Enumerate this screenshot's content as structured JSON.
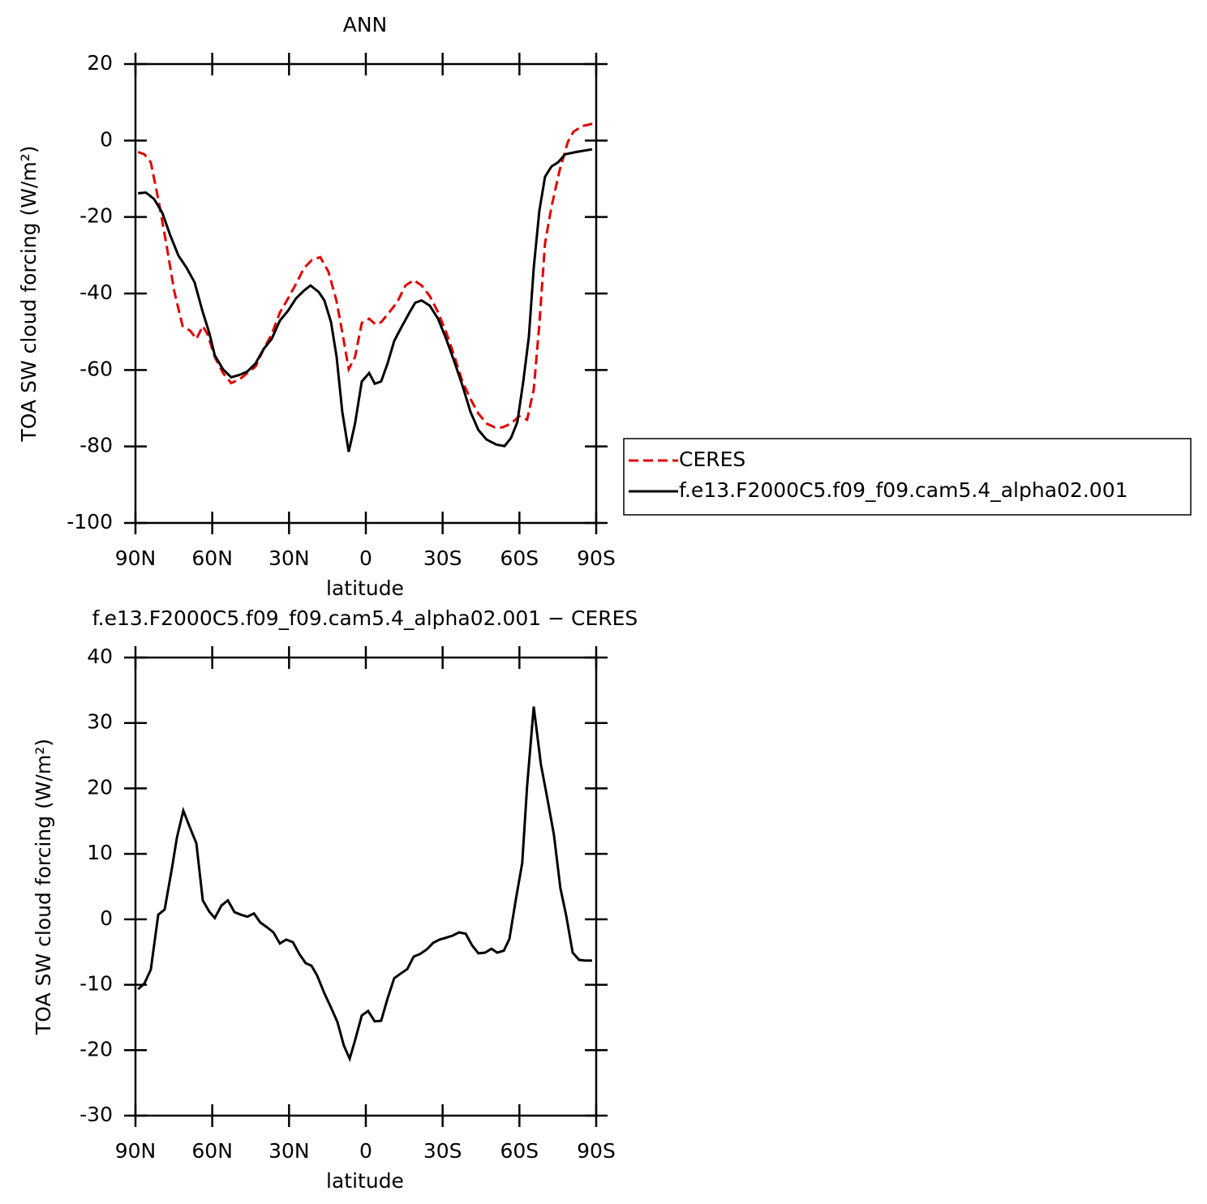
{
  "chart_data": [
    {
      "type": "line",
      "title": "ANN",
      "xlabel": "latitude",
      "ylabel": "TOA SW cloud forcing (W/m²)",
      "xlim": [
        90,
        -90
      ],
      "xticks": [
        {
          "value": 90,
          "label": "90N"
        },
        {
          "value": 60,
          "label": "60N"
        },
        {
          "value": 30,
          "label": "30N"
        },
        0,
        {
          "value": -30,
          "label": "30S"
        },
        {
          "value": -60,
          "label": "60S"
        },
        {
          "value": -90,
          "label": "90S"
        }
      ],
      "ylim": [
        -100,
        20
      ],
      "yticks": [
        20,
        0,
        -20,
        -40,
        -60,
        -80,
        -100
      ],
      "legend": "right",
      "series": [
        {
          "name": "CERES",
          "color": "#e00000",
          "dash": "dashed",
          "x": [
            89.0,
            86.5,
            84.0,
            80.8,
            78.0,
            74.8,
            71.6,
            68.5,
            66.2,
            63.7,
            61.8,
            59.0,
            55.8,
            52.6,
            49.4,
            46.3,
            43.1,
            39.9,
            36.8,
            33.6,
            30.4,
            27.3,
            24.1,
            21.0,
            17.8,
            14.6,
            11.5,
            9.2,
            6.7,
            4.2,
            1.6,
            -1.3,
            -3.8,
            -6.0,
            -9.2,
            -12.3,
            -15.5,
            -18.7,
            -21.8,
            -25.0,
            -28.2,
            -31.4,
            -34.5,
            -37.7,
            -40.9,
            -44.0,
            -47.2,
            -50.4,
            -53.5,
            -56.7,
            -59.9,
            -63.0,
            -65.6,
            -67.8,
            -70.0,
            -72.5,
            -75.7,
            -78.9,
            -81.1,
            -84.6,
            -89.4
          ],
          "values": [
            -3.0,
            -3.6,
            -5.7,
            -16.3,
            -26.9,
            -39.6,
            -48.5,
            -49.8,
            -51.9,
            -48.5,
            -50.7,
            -56.6,
            -60.8,
            -63.4,
            -62.5,
            -60.8,
            -59.1,
            -54.5,
            -50.7,
            -45.0,
            -41.3,
            -37.5,
            -33.3,
            -31.2,
            -30.5,
            -34.3,
            -41.8,
            -50.2,
            -59.8,
            -56.6,
            -47.7,
            -46.6,
            -48.1,
            -47.5,
            -44.9,
            -42.2,
            -37.9,
            -36.5,
            -37.9,
            -40.7,
            -44.9,
            -50.2,
            -56.2,
            -63.0,
            -67.6,
            -71.4,
            -74.0,
            -75.0,
            -75.0,
            -74.0,
            -72.1,
            -73.0,
            -65.1,
            -48.1,
            -26.9,
            -17.4,
            -7.8,
            -0.4,
            2.3,
            3.8,
            4.5
          ]
        },
        {
          "name": "f.e13.F2000C5.f09_f09.cam5.4_alpha02.001",
          "color": "#000000",
          "dash": "solid",
          "x": [
            89.0,
            85.9,
            82.7,
            79.5,
            76.4,
            73.2,
            70.0,
            66.9,
            63.7,
            61.2,
            59.0,
            55.8,
            52.6,
            49.4,
            46.3,
            43.1,
            39.9,
            36.8,
            33.6,
            30.4,
            27.3,
            24.1,
            21.6,
            18.4,
            16.2,
            13.6,
            11.4,
            9.2,
            6.7,
            4.2,
            1.6,
            -1.3,
            -3.5,
            -6.0,
            -8.5,
            -11.1,
            -13.9,
            -17.1,
            -19.3,
            -21.8,
            -25.0,
            -28.2,
            -31.4,
            -34.5,
            -37.7,
            -40.9,
            -44.0,
            -47.2,
            -51.0,
            -54.2,
            -56.7,
            -59.2,
            -61.5,
            -63.7,
            -65.6,
            -67.8,
            -70.0,
            -72.5,
            -75.1,
            -77.9,
            -82.1,
            -88.4
          ],
          "values": [
            -13.8,
            -13.6,
            -15.3,
            -18.9,
            -24.8,
            -30.1,
            -33.3,
            -37.1,
            -44.9,
            -50.2,
            -56.2,
            -59.8,
            -61.9,
            -61.3,
            -60.4,
            -58.3,
            -54.5,
            -51.9,
            -47.1,
            -44.5,
            -41.3,
            -39.2,
            -37.9,
            -39.6,
            -41.8,
            -47.5,
            -56.6,
            -71.0,
            -81.4,
            -74.0,
            -63.0,
            -60.8,
            -63.6,
            -63.0,
            -58.3,
            -52.4,
            -48.8,
            -44.9,
            -42.4,
            -41.8,
            -43.2,
            -46.6,
            -51.9,
            -57.7,
            -64.0,
            -71.0,
            -75.7,
            -78.2,
            -79.5,
            -79.9,
            -77.8,
            -73.6,
            -63.0,
            -51.3,
            -33.3,
            -18.4,
            -9.5,
            -6.8,
            -5.7,
            -3.6,
            -3.0,
            -2.3
          ]
        }
      ]
    },
    {
      "type": "line",
      "title": "f.e13.F2000C5.f09_f09.cam5.4_alpha02.001 − CERES",
      "xlabel": "latitude",
      "ylabel": "TOA SW cloud forcing (W/m²)",
      "xlim": [
        90,
        -90
      ],
      "xticks": [
        {
          "value": 90,
          "label": "90N"
        },
        {
          "value": 60,
          "label": "60N"
        },
        {
          "value": 30,
          "label": "30N"
        },
        0,
        {
          "value": -30,
          "label": "30S"
        },
        {
          "value": -60,
          "label": "60S"
        },
        {
          "value": -90,
          "label": "90S"
        }
      ],
      "ylim": [
        -30,
        40
      ],
      "yticks": [
        40,
        30,
        20,
        10,
        0,
        -10,
        -20,
        -30
      ],
      "series": [
        {
          "color": "#000000",
          "dash": "solid",
          "x": [
            89.0,
            86.5,
            84.0,
            81.1,
            78.6,
            75.7,
            73.8,
            71.3,
            68.8,
            66.2,
            63.7,
            61.2,
            59.0,
            56.4,
            53.9,
            51.3,
            48.8,
            46.3,
            43.7,
            41.2,
            38.7,
            36.1,
            33.6,
            31.1,
            28.5,
            26.0,
            23.5,
            21.2,
            19.0,
            16.2,
            13.6,
            11.1,
            8.6,
            6.3,
            4.2,
            1.6,
            -0.9,
            -3.5,
            -6.0,
            -8.5,
            -11.1,
            -13.6,
            -16.2,
            -18.7,
            -21.2,
            -23.8,
            -26.3,
            -28.8,
            -31.4,
            -33.9,
            -36.4,
            -39.0,
            -41.5,
            -44.0,
            -46.6,
            -49.1,
            -51.3,
            -53.9,
            -56.1,
            -58.6,
            -61.1,
            -63.0,
            -65.6,
            -68.4,
            -70.9,
            -73.5,
            -76.0,
            -78.3,
            -80.8,
            -83.3,
            -85.8,
            -88.4
          ],
          "values": [
            -10.7,
            -9.8,
            -7.7,
            0.7,
            1.5,
            7.9,
            12.5,
            16.6,
            14.1,
            11.6,
            2.9,
            1.2,
            0.2,
            2.1,
            2.9,
            1.1,
            0.7,
            0.4,
            0.9,
            -0.5,
            -1.2,
            -2.0,
            -3.7,
            -3.1,
            -3.5,
            -5.3,
            -6.7,
            -7.1,
            -8.6,
            -11.3,
            -13.5,
            -15.7,
            -19.3,
            -21.3,
            -18.5,
            -14.7,
            -14.0,
            -15.6,
            -15.5,
            -12.1,
            -9.0,
            -8.3,
            -7.6,
            -5.7,
            -5.3,
            -4.6,
            -3.6,
            -3.1,
            -2.8,
            -2.5,
            -2.0,
            -2.2,
            -4.0,
            -5.2,
            -5.1,
            -4.5,
            -5.1,
            -4.8,
            -3.0,
            3.0,
            8.6,
            20.3,
            32.5,
            23.7,
            18.5,
            12.9,
            4.8,
            0.5,
            -5.1,
            -6.2,
            -6.3,
            -6.3
          ]
        }
      ]
    }
  ]
}
